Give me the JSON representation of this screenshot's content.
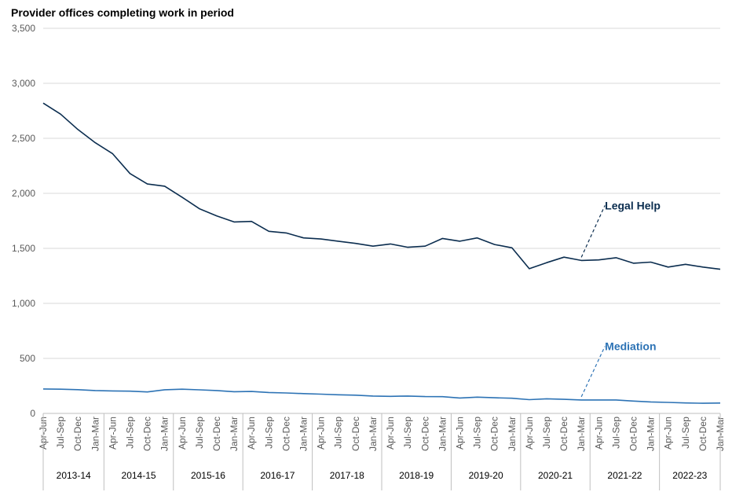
{
  "chart_data": {
    "type": "line",
    "title": "Provider offices completing work in period",
    "xlabel": "",
    "ylabel": "",
    "ylim": [
      0,
      3500
    ],
    "yticks": [
      0,
      500,
      1000,
      1500,
      2000,
      2500,
      3000,
      3500
    ],
    "ytick_labels": [
      "0",
      "500",
      "1,000",
      "1,500",
      "2,000",
      "2,500",
      "3,000",
      "3,500"
    ],
    "grid": true,
    "quarters": [
      "Apr-Jun",
      "Jul-Sep",
      "Oct-Dec",
      "Jan-Mar"
    ],
    "categories": [
      "Apr-Jun",
      "Jul-Sep",
      "Oct-Dec",
      "Jan-Mar",
      "Apr-Jun",
      "Jul-Sep",
      "Oct-Dec",
      "Jan-Mar",
      "Apr-Jun",
      "Jul-Sep",
      "Oct-Dec",
      "Jan-Mar",
      "Apr-Jun",
      "Jul-Sep",
      "Oct-Dec",
      "Jan-Mar",
      "Apr-Jun",
      "Jul-Sep",
      "Oct-Dec",
      "Jan-Mar",
      "Apr-Jun",
      "Jul-Sep",
      "Oct-Dec",
      "Jan-Mar",
      "Apr-Jun",
      "Jul-Sep",
      "Oct-Dec",
      "Jan-Mar",
      "Apr-Jun",
      "Jul-Sep",
      "Oct-Dec",
      "Jan-Mar",
      "Apr-Jun",
      "Jul-Sep",
      "Oct-Dec",
      "Jan-Mar",
      "Apr-Jun",
      "Jul-Sep",
      "Oct-Dec",
      "Jan-Mar"
    ],
    "years": [
      "2013-14",
      "2014-15",
      "2015-16",
      "2016-17",
      "2017-18",
      "2018-19",
      "2019-20",
      "2020-21",
      "2021-22",
      "2022-23"
    ],
    "series": [
      {
        "name": "Legal Help",
        "color": "#0b2d4f",
        "values": [
          2820,
          2720,
          2580,
          2460,
          2360,
          2180,
          2085,
          2065,
          1965,
          1860,
          1795,
          1740,
          1745,
          1655,
          1640,
          1595,
          1585,
          1565,
          1545,
          1520,
          1540,
          1510,
          1520,
          1590,
          1565,
          1595,
          1535,
          1505,
          1315,
          1370,
          1420,
          1390,
          1395,
          1415,
          1365,
          1375,
          1330,
          1355,
          1330,
          1310
        ]
      },
      {
        "name": "Mediation",
        "color": "#2d73b5",
        "values": [
          222,
          220,
          216,
          208,
          204,
          202,
          195,
          215,
          220,
          214,
          208,
          197,
          199,
          190,
          186,
          180,
          175,
          169,
          166,
          158,
          155,
          158,
          153,
          152,
          140,
          148,
          142,
          138,
          125,
          133,
          128,
          122,
          122,
          122,
          112,
          104,
          100,
          95,
          92,
          94
        ]
      }
    ]
  }
}
